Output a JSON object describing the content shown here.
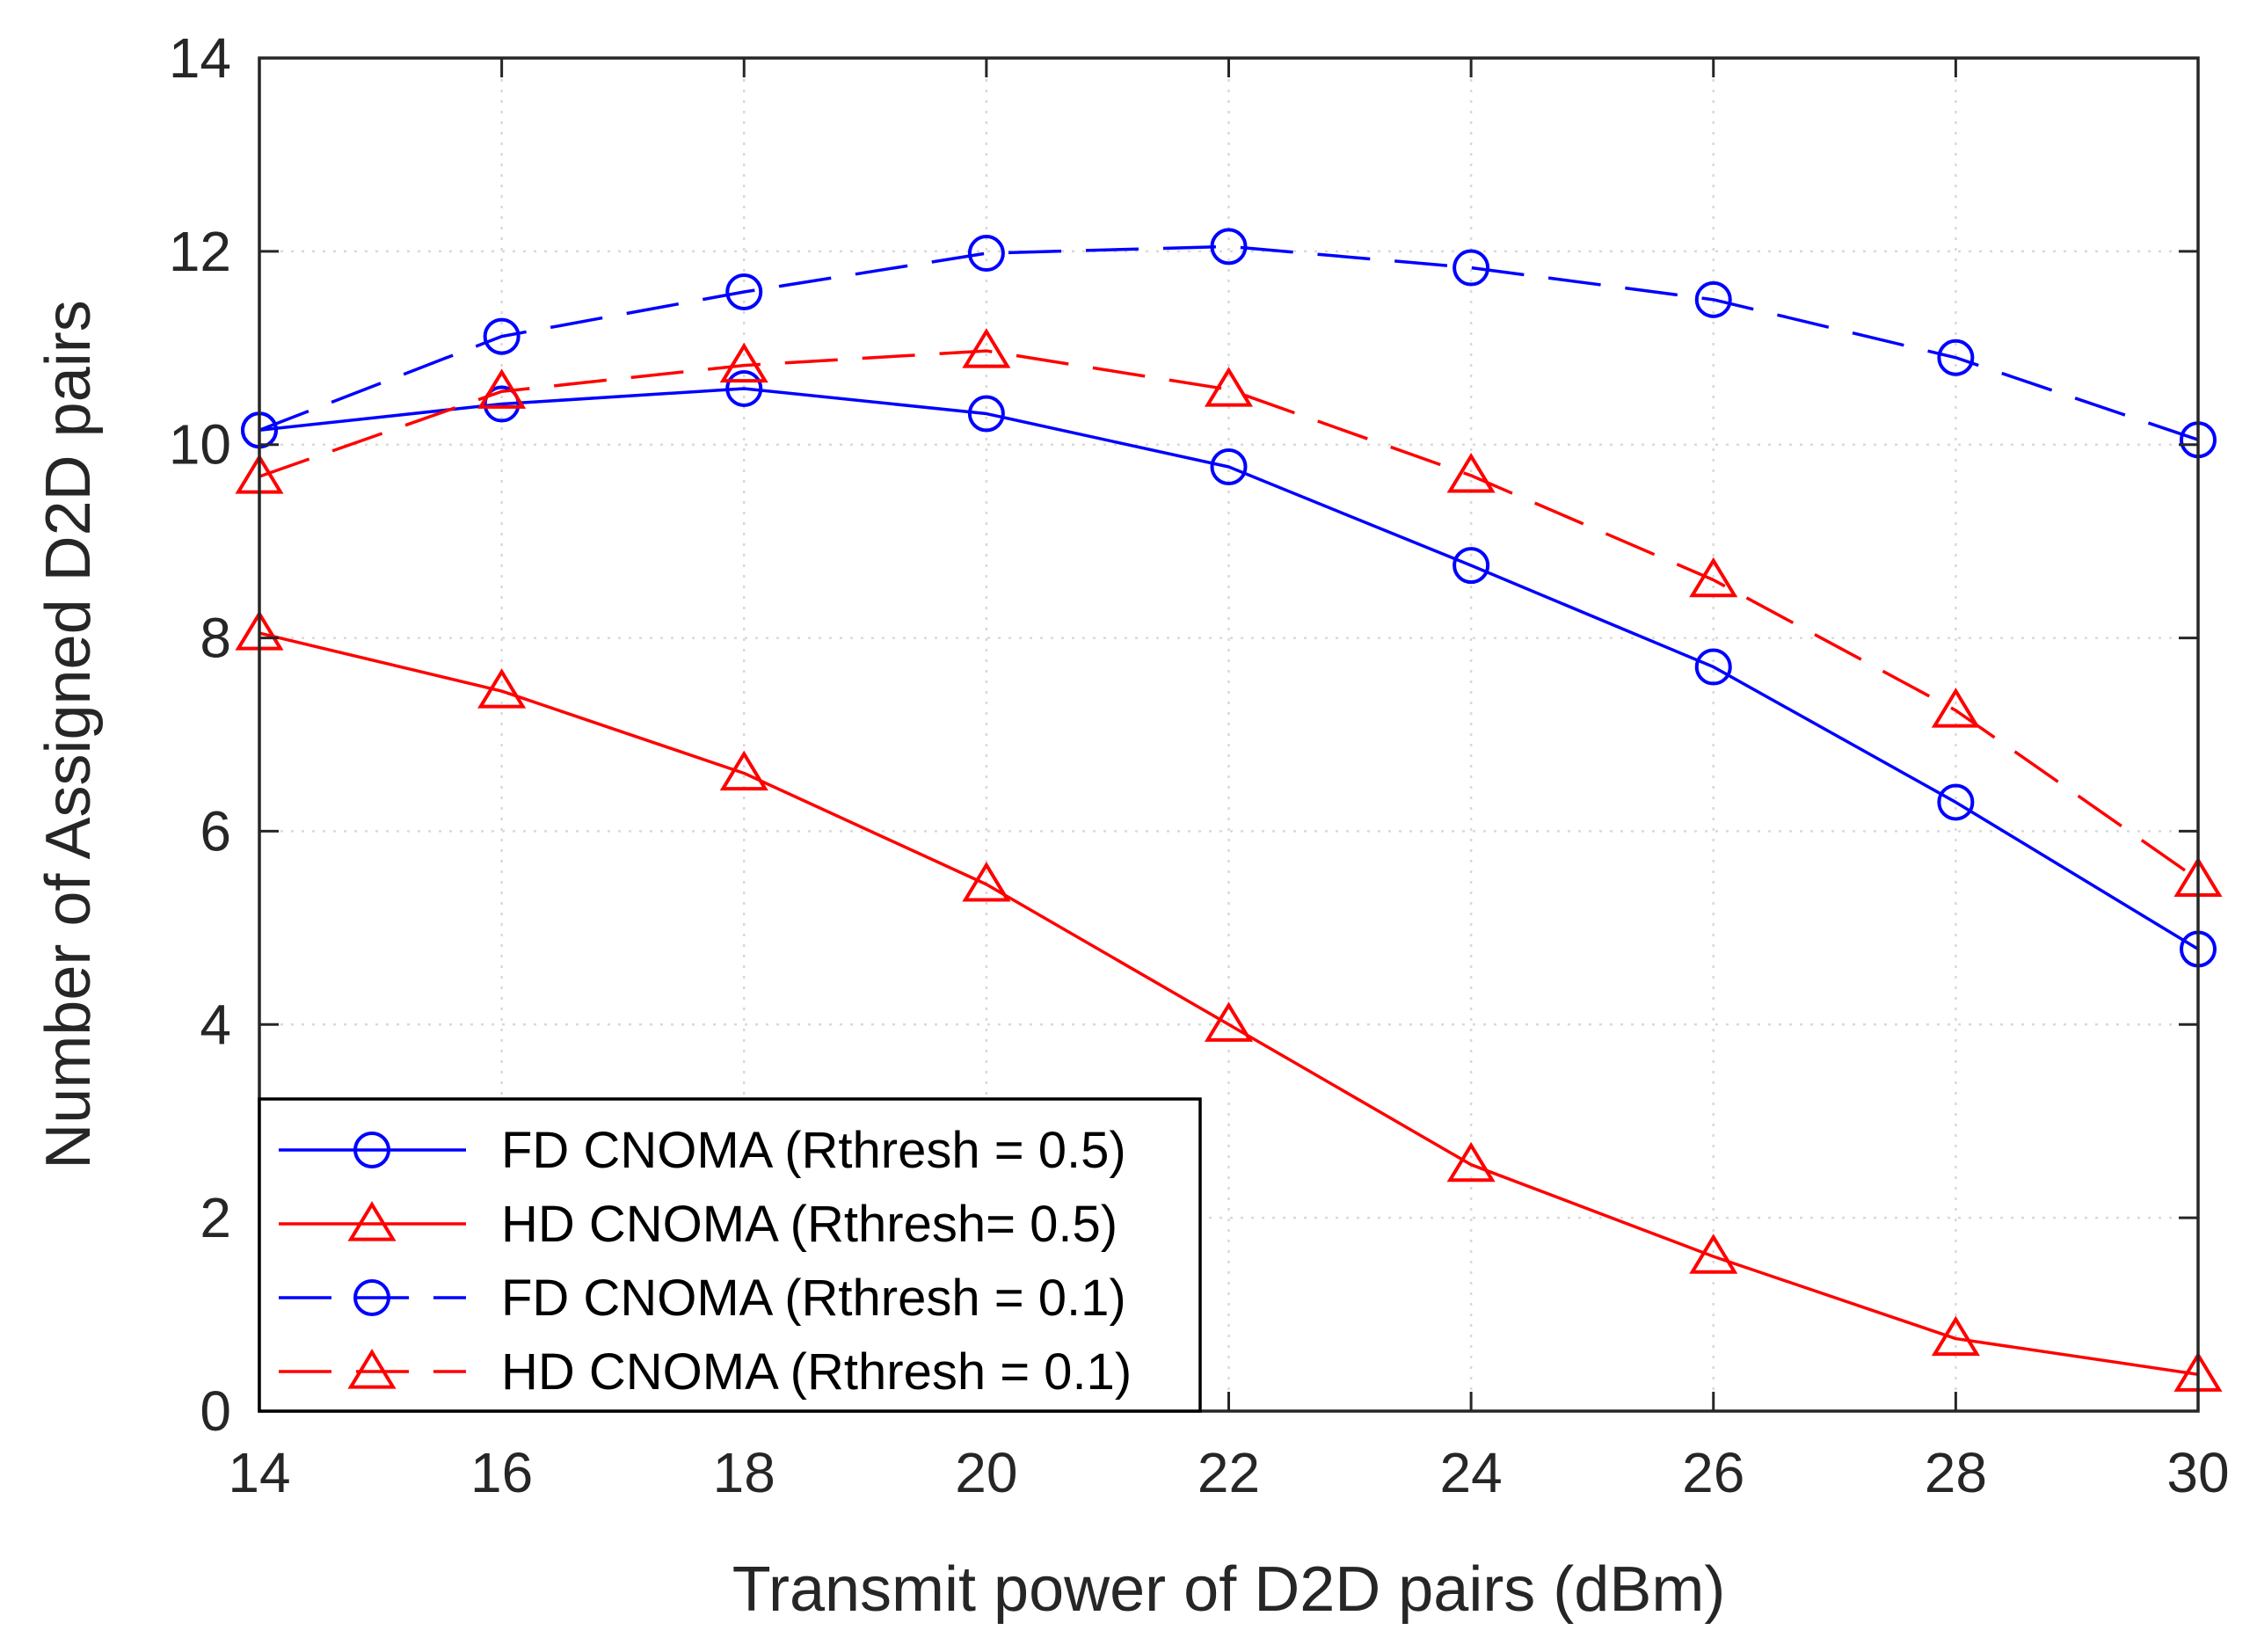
{
  "chart_data": {
    "type": "line",
    "title": "",
    "xlabel": "Transmit power of D2D pairs (dBm)",
    "ylabel": "Number of Assigned D2D pairs",
    "xlim": [
      14,
      30
    ],
    "ylim": [
      0,
      14
    ],
    "x": [
      14,
      16,
      18,
      20,
      22,
      24,
      26,
      28,
      30
    ],
    "x_ticks": [
      "14",
      "16",
      "18",
      "20",
      "22",
      "24",
      "26",
      "28",
      "30"
    ],
    "y_ticks": [
      "0",
      "2",
      "4",
      "6",
      "8",
      "10",
      "12",
      "14"
    ],
    "grid": true,
    "legend_position": "bottom-left",
    "series": [
      {
        "name": "FD CNOMA (Rthresh = 0.5)",
        "values": [
          10.15,
          10.42,
          10.58,
          10.32,
          9.77,
          8.75,
          7.7,
          6.3,
          4.78
        ],
        "color": "#0000ff",
        "marker": "circle",
        "dash": "solid"
      },
      {
        "name": "HD CNOMA (Rthresh= 0.5)",
        "values": [
          8.05,
          7.45,
          6.6,
          5.45,
          4.0,
          2.55,
          1.6,
          0.75,
          0.38
        ],
        "color": "#ff0000",
        "marker": "triangle",
        "dash": "solid"
      },
      {
        "name": "FD CNOMA (Rthresh = 0.1)",
        "values": [
          10.15,
          11.12,
          11.58,
          11.98,
          12.05,
          11.83,
          11.5,
          10.9,
          10.05
        ],
        "color": "#0000ff",
        "marker": "circle",
        "dash": "dashed"
      },
      {
        "name": "HD CNOMA (Rthresh = 0.1)",
        "values": [
          9.67,
          10.55,
          10.82,
          10.97,
          10.57,
          9.68,
          8.6,
          7.25,
          5.5
        ],
        "color": "#ff0000",
        "marker": "triangle",
        "dash": "dashed"
      }
    ]
  }
}
